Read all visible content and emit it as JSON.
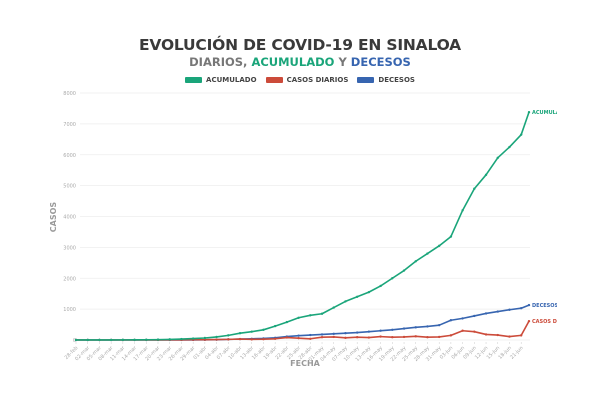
{
  "chart_data": {
    "type": "line",
    "title": "EVOLUCIÓN DE COVID-19 EN SINALOA",
    "subtitle": {
      "part1": "DIARIOS, ",
      "part2": "ACUMULADO",
      "part3": " Y ",
      "part4": "DECESOS"
    },
    "xlabel": "FECHA",
    "ylabel": "CASOS",
    "ylim": [
      0,
      8000
    ],
    "yticks": [
      "0",
      "1000",
      "2000",
      "3000",
      "4000",
      "5000",
      "6000",
      "7000",
      "8000"
    ],
    "grid": true,
    "legend_position": "top-center",
    "x": [
      "28-feb",
      "02-mar",
      "05-mar",
      "08-mar",
      "11-mar",
      "14-mar",
      "17-mar",
      "20-mar",
      "23-mar",
      "26-mar",
      "29-mar",
      "01-abr",
      "04-abr",
      "07-abr",
      "10-abr",
      "13-abr",
      "16-abr",
      "19-abr",
      "22-abr",
      "25-abr",
      "28-abr",
      "01-may",
      "04-may",
      "07-may",
      "10-may",
      "13-may",
      "16-may",
      "19-may",
      "22-may",
      "25-may",
      "28-may",
      "31-may",
      "03-jun",
      "06-jun",
      "09-jun",
      "12-jun",
      "15-jun",
      "18-jun",
      "21-jun",
      "23-jun"
    ],
    "x_tick_labels": [
      "28-feb",
      "02-mar",
      "05-mar",
      "08-mar",
      "11-mar",
      "14-mar",
      "17-mar",
      "20-mar",
      "23-mar",
      "26-mar",
      "29-mar",
      "01-abr",
      "04-abr",
      "07-abr",
      "10-abr",
      "13-abr",
      "16-abr",
      "19-abr",
      "22-abr",
      "25-abr",
      "28-abr",
      "01-may",
      "04-may",
      "07-may",
      "10-may",
      "13-may",
      "16-may",
      "19-may",
      "22-may",
      "25-may",
      "28-may",
      "31-may",
      "03-jun",
      "06-jun",
      "09-jun",
      "12-jun",
      "15-jun",
      "18-jun",
      "21-jun"
    ],
    "series": [
      {
        "name": "ACUMULADO",
        "end_label": "ACUMULADO",
        "color": "#1aa57a",
        "values": [
          1,
          2,
          3,
          3,
          4,
          5,
          8,
          12,
          20,
          30,
          45,
          65,
          100,
          150,
          220,
          270,
          330,
          450,
          580,
          720,
          800,
          850,
          1050,
          1250,
          1400,
          1550,
          1750,
          2000,
          2250,
          2550,
          2800,
          3050,
          3350,
          4200,
          4900,
          5350,
          5900,
          6250,
          6650,
          7380
        ]
      },
      {
        "name": "CASOS DIARIOS",
        "end_label": "CASOS DIARIOS",
        "color": "#cc4b3a",
        "values": [
          1,
          0,
          0,
          1,
          0,
          1,
          2,
          3,
          5,
          5,
          8,
          10,
          15,
          20,
          30,
          20,
          25,
          40,
          80,
          60,
          40,
          90,
          100,
          70,
          90,
          80,
          110,
          90,
          100,
          120,
          90,
          100,
          150,
          300,
          270,
          180,
          160,
          110,
          150,
          610
        ]
      },
      {
        "name": "DECESOS",
        "end_label": "DECESOS",
        "color": "#3765b0",
        "values": [
          0,
          0,
          0,
          0,
          0,
          0,
          0,
          1,
          1,
          2,
          3,
          5,
          10,
          20,
          30,
          40,
          50,
          70,
          110,
          140,
          160,
          180,
          200,
          220,
          240,
          270,
          300,
          330,
          370,
          410,
          440,
          480,
          640,
          700,
          780,
          860,
          920,
          980,
          1030,
          1130
        ]
      }
    ]
  }
}
